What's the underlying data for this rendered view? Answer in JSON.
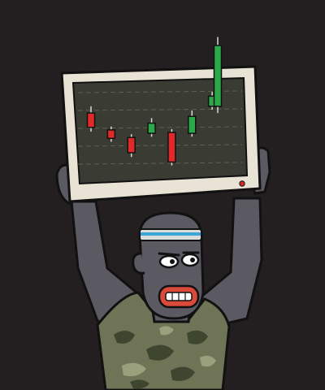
{
  "colors": {
    "background": "#231f20",
    "body": "#5b5962",
    "outline": "#111111",
    "monitor_frame": "#e9e3d5",
    "screen": "#3a3b32",
    "gridline": "#5d6150",
    "candle_up": "#2aa84a",
    "candle_down": "#e02a2a",
    "wick": "#d9d9d9",
    "power_led": "#d32a2a",
    "headband": "#dcdcdc",
    "headband_stripe": "#3aa7d6",
    "mouth": "#d94a3a",
    "camo_base": "#6f7457",
    "camo_dark": "#3f4630",
    "camo_light": "#9aa07c"
  },
  "chart_data": {
    "type": "candlestick",
    "title": "",
    "xlabel": "",
    "ylabel": "",
    "ylim": [
      0,
      100
    ],
    "candles": [
      {
        "open": 72,
        "close": 55,
        "high": 80,
        "low": 50
      },
      {
        "open": 52,
        "close": 42,
        "high": 56,
        "low": 38
      },
      {
        "open": 43,
        "close": 25,
        "high": 47,
        "low": 20
      },
      {
        "open": 48,
        "close": 60,
        "high": 66,
        "low": 44
      },
      {
        "open": 49,
        "close": 14,
        "high": 53,
        "low": 10
      },
      {
        "open": 48,
        "close": 68,
        "high": 75,
        "low": 44
      },
      {
        "open": 80,
        "close": 92,
        "high": 97,
        "low": 76
      },
      {
        "open": 80,
        "close": 152,
        "high": 162,
        "low": 72
      }
    ]
  }
}
